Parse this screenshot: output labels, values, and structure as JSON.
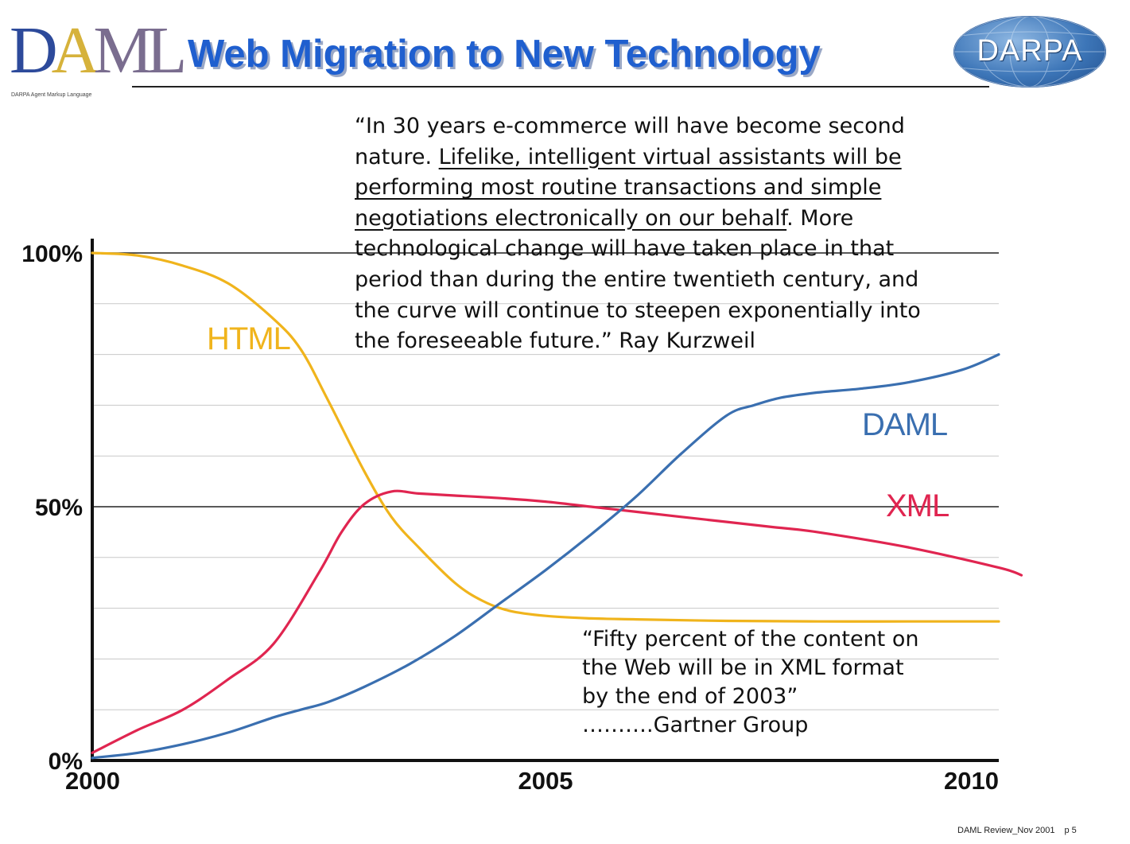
{
  "header": {
    "logo_text": "DAML",
    "logo_subtitle": "DARPA Agent Markup Language",
    "title": "Web Migration to New Technology",
    "darpa_logo": "DARPA"
  },
  "quote1": {
    "p1": "“In 30 years e-commerce will have become second nature. ",
    "p2": "Lifelike, intelligent virtual assistants will be performing most routine transactions and simple negotiations electronically on our behalf",
    "p3": ". More technological change will have taken place in that period than during the entire twentieth century, and the curve will continue to steepen exponentially into the foreseeable future.” Ray Kurzweil"
  },
  "quote2": {
    "line1": "“Fifty percent of the content on",
    "line2": "the Web will be in XML format",
    "line3": "by the end of 2003”",
    "line4": "……….Gartner Group"
  },
  "chart_data": {
    "type": "line",
    "title": "Web Migration to New Technology",
    "xlabel": "",
    "ylabel": "",
    "xlim": [
      2000,
      2010
    ],
    "ylim": [
      0,
      100
    ],
    "x_ticks": [
      2000,
      2005,
      2010
    ],
    "x_tick_labels": [
      "2000",
      "2005",
      "2010"
    ],
    "y_ticks": [
      0,
      50,
      100
    ],
    "y_tick_labels": [
      "0%",
      "50%",
      "100%"
    ],
    "grid": true,
    "series": [
      {
        "name": "HTML",
        "color": "#f0b41c",
        "x": [
          2000,
          2000.5,
          2001,
          2001.5,
          2002,
          2002.3,
          2002.6,
          2003,
          2003.3,
          2003.6,
          2004,
          2004.3,
          2004.6,
          2005,
          2005.5,
          2006,
          2007,
          2008,
          2009,
          2010
        ],
        "y": [
          100,
          99.5,
          97.5,
          94,
          87,
          81,
          71,
          57,
          48,
          42,
          35,
          31.5,
          29.5,
          28.5,
          28,
          27.8,
          27.5,
          27.4,
          27.4,
          27.4
        ]
      },
      {
        "name": "XML",
        "color": "#e02550",
        "x": [
          2000,
          2000.5,
          2001,
          2001.5,
          2002,
          2002.5,
          2002.75,
          2003,
          2003.3,
          2003.6,
          2004,
          2004.5,
          2005,
          2005.5,
          2006,
          2006.5,
          2007,
          2007.5,
          2008,
          2009,
          2010,
          2010.25
        ],
        "y": [
          1.5,
          6,
          10,
          16,
          23,
          37,
          45,
          50.5,
          53,
          52.6,
          52.2,
          51.7,
          51,
          50,
          49,
          48,
          47,
          46,
          45,
          42,
          38,
          36.5
        ]
      },
      {
        "name": "DAML",
        "color": "#3a6fb0",
        "x": [
          2000,
          2000.5,
          2001,
          2001.5,
          2002,
          2002.3,
          2002.6,
          2003,
          2003.5,
          2004,
          2004.5,
          2005,
          2005.5,
          2006,
          2006.5,
          2007,
          2007.3,
          2007.6,
          2008,
          2008.5,
          2009,
          2009.6,
          2010
        ],
        "y": [
          0.5,
          1.5,
          3.2,
          5.5,
          8.5,
          10,
          11.5,
          14.5,
          19,
          24.5,
          31,
          37.5,
          44.5,
          52,
          60.5,
          68,
          70,
          71.5,
          72.5,
          73.3,
          74.5,
          77,
          80
        ]
      }
    ],
    "series_label_positions": {
      "HTML": "upper-left",
      "DAML": "right",
      "XML": "right"
    },
    "legend": "none"
  },
  "footer": {
    "doc": "DAML Review_Nov 2001",
    "page": "p 5"
  }
}
